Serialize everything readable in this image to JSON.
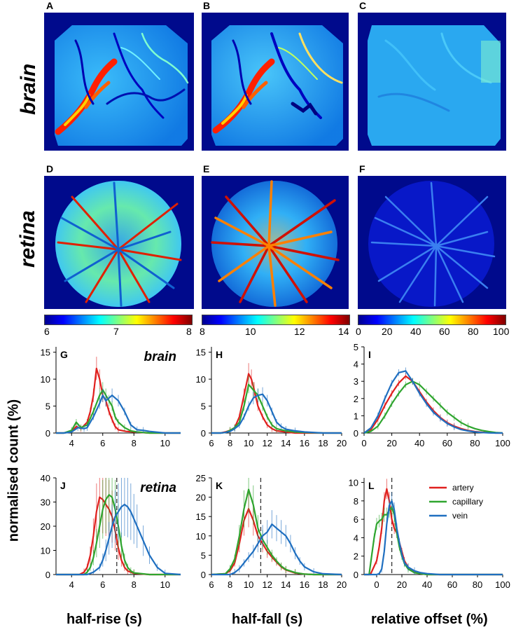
{
  "figure": {
    "panel_letters": [
      "A",
      "B",
      "C",
      "D",
      "E",
      "F",
      "G",
      "H",
      "I",
      "J",
      "K",
      "L"
    ],
    "row_labels": {
      "brain": "brain",
      "retina": "retina"
    },
    "colorbars": [
      {
        "ticks": [
          "6",
          "7",
          "8"
        ]
      },
      {
        "ticks": [
          "8",
          "10",
          "12",
          "14"
        ]
      },
      {
        "ticks": [
          "0",
          "20",
          "40",
          "60",
          "80",
          "100"
        ]
      }
    ],
    "ylabel": "normalised count (%)",
    "xlabels": [
      "half-rise (s)",
      "half-fall (s)",
      "relative offset (%)"
    ],
    "in_plot_labels": {
      "brain": "brain",
      "retina": "retina"
    },
    "legend": [
      {
        "name": "artery",
        "color": "#e0201e"
      },
      {
        "name": "capillary",
        "color": "#2fa52f"
      },
      {
        "name": "vein",
        "color": "#1f6fc0"
      }
    ]
  },
  "chart_data": [
    {
      "panel": "G",
      "type": "line",
      "title": "brain",
      "xlim": [
        3,
        11
      ],
      "ylim": [
        0,
        16
      ],
      "yticks": [
        0,
        5,
        10,
        15
      ],
      "series": [
        {
          "name": "artery",
          "x": [
            3,
            3.5,
            4,
            4.3,
            4.6,
            5,
            5.2,
            5.4,
            5.6,
            5.8,
            6,
            6.2,
            6.4,
            6.6,
            6.8,
            7,
            7.5,
            8,
            9,
            11
          ],
          "y": [
            0,
            0,
            0.3,
            1.2,
            0.8,
            2,
            4,
            7,
            12,
            10,
            7,
            6,
            4,
            2.5,
            1.2,
            0.6,
            0.3,
            0.2,
            0,
            0
          ]
        },
        {
          "name": "capillary",
          "x": [
            3,
            3.5,
            4,
            4.3,
            4.6,
            5,
            5.4,
            5.8,
            6,
            6.2,
            6.4,
            6.6,
            6.8,
            7,
            7.4,
            7.8,
            8.2,
            9,
            11
          ],
          "y": [
            0,
            0,
            0.5,
            2,
            1,
            1.5,
            4,
            7,
            8,
            7,
            6,
            5,
            3,
            2,
            1,
            0.4,
            0.2,
            0,
            0
          ]
        },
        {
          "name": "vein",
          "x": [
            3,
            3.5,
            4,
            4.4,
            4.8,
            5,
            5.4,
            5.8,
            6,
            6.2,
            6.6,
            7,
            7.4,
            7.8,
            8.2,
            8.6,
            9,
            10,
            11
          ],
          "y": [
            0,
            0,
            0.2,
            1,
            0.8,
            1,
            3,
            5.5,
            7,
            6,
            7,
            6,
            4,
            1.5,
            0.6,
            0.5,
            0.3,
            0,
            0
          ]
        }
      ]
    },
    {
      "panel": "H",
      "type": "line",
      "xlim": [
        6,
        20
      ],
      "ylim": [
        0,
        16
      ],
      "yticks": [
        0,
        5,
        10,
        15
      ],
      "series": [
        {
          "name": "artery",
          "x": [
            6,
            7,
            7.5,
            8,
            8.5,
            9,
            9.5,
            10,
            10.3,
            10.6,
            11,
            11.5,
            12,
            12.5,
            13,
            14,
            15,
            16,
            18,
            20
          ],
          "y": [
            0,
            0,
            0.2,
            0.5,
            1,
            3,
            7,
            11,
            10,
            8,
            5,
            3,
            1.5,
            0.8,
            0.4,
            0.2,
            0,
            0,
            0,
            0
          ]
        },
        {
          "name": "capillary",
          "x": [
            6,
            7,
            7.5,
            8,
            8.5,
            9,
            9.5,
            10,
            10.5,
            11,
            11.5,
            12,
            12.5,
            13,
            14,
            15,
            16,
            18,
            20
          ],
          "y": [
            0,
            0,
            0.1,
            0.5,
            1,
            2,
            5,
            9,
            8,
            7,
            5,
            3,
            1.5,
            0.8,
            0.4,
            0.2,
            0.1,
            0,
            0
          ]
        },
        {
          "name": "vein",
          "x": [
            6,
            7,
            7.5,
            8,
            8.5,
            9,
            9.5,
            10,
            10.5,
            11,
            11.5,
            12,
            12.5,
            13,
            13.5,
            14,
            15,
            16,
            18,
            20
          ],
          "y": [
            0,
            0,
            0.1,
            0.3,
            0.8,
            1.5,
            3,
            5,
            6.5,
            7,
            7.2,
            6,
            4,
            2,
            1.2,
            0.7,
            0.4,
            0.2,
            0,
            0
          ]
        }
      ]
    },
    {
      "panel": "I",
      "type": "line",
      "xlim": [
        0,
        100
      ],
      "ylim": [
        0,
        5
      ],
      "yticks": [
        0,
        1,
        2,
        3,
        4,
        5
      ],
      "series": [
        {
          "name": "artery",
          "x": [
            0,
            5,
            10,
            15,
            20,
            25,
            30,
            35,
            40,
            45,
            50,
            55,
            60,
            65,
            70,
            75,
            80,
            85,
            90,
            95,
            100
          ],
          "y": [
            0,
            0.2,
            0.8,
            1.6,
            2.3,
            2.9,
            3.3,
            3.0,
            2.4,
            1.8,
            1.3,
            0.9,
            0.6,
            0.4,
            0.25,
            0.15,
            0.08,
            0.04,
            0.02,
            0,
            0
          ]
        },
        {
          "name": "capillary",
          "x": [
            0,
            5,
            10,
            15,
            20,
            25,
            30,
            35,
            40,
            45,
            50,
            55,
            60,
            65,
            70,
            75,
            80,
            85,
            90,
            95,
            100
          ],
          "y": [
            0,
            0.1,
            0.4,
            1.0,
            1.7,
            2.3,
            2.8,
            3.0,
            2.8,
            2.4,
            2.0,
            1.6,
            1.2,
            0.9,
            0.6,
            0.4,
            0.25,
            0.15,
            0.08,
            0.03,
            0
          ]
        },
        {
          "name": "vein",
          "x": [
            0,
            5,
            10,
            15,
            20,
            25,
            30,
            35,
            40,
            45,
            50,
            55,
            60,
            65,
            70,
            75,
            80,
            85,
            90,
            95,
            100
          ],
          "y": [
            0,
            0.3,
            1.0,
            2.0,
            2.9,
            3.5,
            3.6,
            3.0,
            2.3,
            1.7,
            1.2,
            0.85,
            0.55,
            0.35,
            0.2,
            0.12,
            0.06,
            0.03,
            0.01,
            0,
            0
          ]
        }
      ]
    },
    {
      "panel": "J",
      "type": "line",
      "title": "retina",
      "xlim": [
        3,
        11
      ],
      "ylim": [
        0,
        40
      ],
      "yticks": [
        0,
        10,
        20,
        30,
        40
      ],
      "vline": 6.9,
      "series": [
        {
          "name": "artery",
          "x": [
            3,
            4.5,
            4.8,
            5,
            5.2,
            5.4,
            5.6,
            5.8,
            6,
            6.2,
            6.4,
            6.6,
            6.8,
            7,
            7.2,
            7.4,
            7.6,
            8,
            9,
            11
          ],
          "y": [
            0,
            0,
            1,
            3,
            8,
            16,
            26,
            32,
            31,
            29,
            27,
            24,
            18,
            11,
            6,
            3,
            1.5,
            0.5,
            0,
            0
          ]
        },
        {
          "name": "capillary",
          "x": [
            3,
            4.8,
            5,
            5.2,
            5.4,
            5.6,
            5.8,
            6,
            6.2,
            6.4,
            6.6,
            6.8,
            7,
            7.2,
            7.4,
            7.6,
            7.8,
            8,
            9,
            11
          ],
          "y": [
            0,
            0,
            1,
            3,
            7,
            13,
            20,
            27,
            31,
            33,
            32,
            27,
            20,
            12,
            6,
            3,
            1.5,
            0.7,
            0,
            0
          ]
        },
        {
          "name": "vein",
          "x": [
            3,
            5,
            5.4,
            5.8,
            6,
            6.2,
            6.4,
            6.6,
            6.8,
            7,
            7.2,
            7.4,
            7.6,
            7.8,
            8,
            8.2,
            8.6,
            9,
            9.5,
            10,
            11
          ],
          "y": [
            0,
            0,
            1,
            3,
            6,
            10,
            15,
            20,
            24,
            26,
            28,
            29,
            28,
            26,
            23,
            20,
            14,
            8,
            3,
            0.5,
            0
          ]
        }
      ]
    },
    {
      "panel": "K",
      "type": "line",
      "xlim": [
        6,
        20
      ],
      "ylim": [
        0,
        25
      ],
      "yticks": [
        0,
        5,
        10,
        15,
        20,
        25
      ],
      "vline": 11.3,
      "series": [
        {
          "name": "artery",
          "x": [
            6,
            7.5,
            8,
            8.5,
            9,
            9.5,
            10,
            10.5,
            11,
            11.5,
            12,
            12.5,
            13,
            13.5,
            14,
            15,
            16,
            17,
            20
          ],
          "y": [
            0,
            0.2,
            1,
            3,
            8,
            14,
            17,
            14,
            10,
            8,
            6,
            4.5,
            3.2,
            2,
            1.2,
            0.4,
            0.1,
            0,
            0
          ]
        },
        {
          "name": "capillary",
          "x": [
            6,
            7.5,
            8,
            8.5,
            9,
            9.5,
            10,
            10.5,
            11,
            11.5,
            12,
            12.5,
            13,
            13.5,
            14,
            15,
            16,
            17,
            20
          ],
          "y": [
            0,
            0.2,
            1.5,
            4,
            10,
            17,
            22,
            18,
            12,
            9,
            7,
            5,
            3.5,
            2.2,
            1.3,
            0.5,
            0.1,
            0,
            0
          ]
        },
        {
          "name": "vein",
          "x": [
            6,
            8,
            8.5,
            9,
            9.5,
            10,
            10.5,
            11,
            11.5,
            12,
            12.5,
            13,
            13.5,
            14,
            14.5,
            15,
            15.5,
            16,
            17,
            18,
            20
          ],
          "y": [
            0,
            0,
            0.5,
            1.5,
            3,
            4.5,
            6,
            8,
            10,
            11,
            13,
            12,
            11,
            10,
            8,
            5.5,
            3.5,
            2,
            0.7,
            0.2,
            0
          ]
        }
      ]
    },
    {
      "panel": "L",
      "type": "line",
      "xlim": [
        -10,
        100
      ],
      "ylim": [
        0,
        10.5
      ],
      "yticks": [
        0,
        2,
        4,
        6,
        8,
        10
      ],
      "vline": 12,
      "series": [
        {
          "name": "artery",
          "x": [
            -10,
            -5,
            0,
            2,
            4,
            6,
            8,
            10,
            12,
            14,
            16,
            18,
            20,
            22,
            25,
            30,
            35,
            40,
            50,
            100
          ],
          "y": [
            0,
            0,
            1.5,
            3,
            5,
            8,
            9.3,
            8,
            6,
            5,
            4.5,
            3.5,
            2.5,
            1.5,
            0.8,
            0.3,
            0.1,
            0,
            0,
            0
          ]
        },
        {
          "name": "capillary",
          "x": [
            -10,
            -6,
            -4,
            -2,
            0,
            2,
            4,
            6,
            8,
            10,
            12,
            14,
            16,
            18,
            20,
            22,
            25,
            30,
            35,
            40,
            50,
            100
          ],
          "y": [
            0,
            0,
            2,
            4,
            5.5,
            5.8,
            6,
            6.5,
            6.5,
            7,
            7.3,
            6.5,
            4.5,
            3,
            2,
            1.2,
            0.6,
            0.2,
            0.1,
            0,
            0,
            0
          ]
        },
        {
          "name": "vein",
          "x": [
            -10,
            0,
            2,
            4,
            6,
            8,
            10,
            12,
            14,
            16,
            18,
            20,
            22,
            25,
            30,
            35,
            40,
            50,
            100
          ],
          "y": [
            0,
            0,
            0.1,
            0.6,
            2.5,
            5.5,
            7.5,
            8,
            7,
            5,
            3.5,
            2.2,
            1.3,
            0.8,
            0.4,
            0.2,
            0.1,
            0,
            0
          ]
        }
      ]
    }
  ]
}
